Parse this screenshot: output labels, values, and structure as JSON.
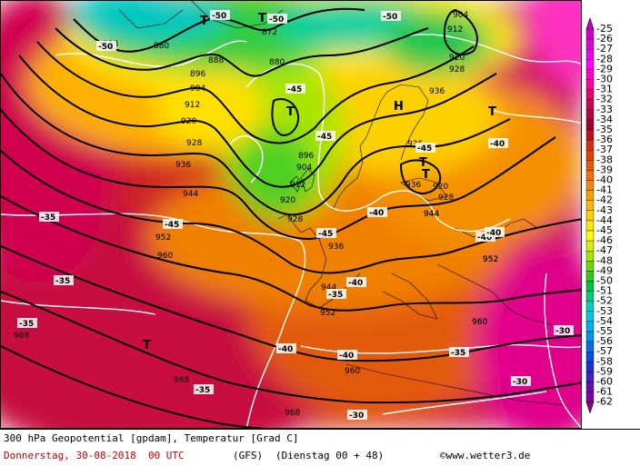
{
  "legend": {
    "values": [
      "-25",
      "-26",
      "-27",
      "-28",
      "-29",
      "-30",
      "-31",
      "-32",
      "-33",
      "-34",
      "-35",
      "-36",
      "-37",
      "-38",
      "-39",
      "-40",
      "-41",
      "-42",
      "-43",
      "-44",
      "-45",
      "-46",
      "-47",
      "-48",
      "-49",
      "-50",
      "-51",
      "-52",
      "-53",
      "-54",
      "-55",
      "-56",
      "-57",
      "-58",
      "-59",
      "-60",
      "-61",
      "-62"
    ],
    "colors": [
      "#cc00cc",
      "#dd00dd",
      "#ee00ee",
      "#ff00ff",
      "#ff00cc",
      "#ff0099",
      "#e6006e",
      "#cc0055",
      "#b80040",
      "#a00030",
      "#c01020",
      "#d03010",
      "#e04000",
      "#e85800",
      "#f07000",
      "#f58800",
      "#faa000",
      "#ffb800",
      "#ffd000",
      "#ffe800",
      "#ffff00",
      "#d8f000",
      "#a8e400",
      "#70d800",
      "#30cc10",
      "#00c040",
      "#00c880",
      "#00d0b8",
      "#00c8e0",
      "#00b0f0",
      "#0090f0",
      "#0070e8",
      "#0050e0",
      "#2030d0",
      "#4020c0",
      "#6010b0",
      "#7808a0",
      "#900090"
    ]
  },
  "caption": {
    "line1": "300 hPa Geopotential [gpdam], Temperatur [Grad C]",
    "date": "Donnerstag, 30-08-2018  00 UTC",
    "model": "(GFS)",
    "run": "(Dienstag 00 + 48)",
    "credit": "©www.wetter3.de"
  },
  "map": {
    "geopotential_labels": [
      "872",
      "880",
      "888",
      "896",
      "904",
      "912",
      "920",
      "928",
      "936",
      "944",
      "952",
      "960",
      "968",
      "880",
      "888",
      "896",
      "904",
      "912",
      "920",
      "928",
      "936",
      "944",
      "952",
      "960",
      "968",
      "920",
      "928",
      "936",
      "936",
      "944",
      "952",
      "960",
      "904",
      "912",
      "920",
      "928",
      "936",
      "944",
      "952",
      "960",
      "968"
    ],
    "temperature_labels": [
      "-50",
      "-50",
      "-50",
      "-50",
      "-45",
      "-45",
      "-45",
      "-45",
      "-45",
      "-40",
      "-40",
      "-40",
      "-40",
      "-40",
      "-40",
      "-40",
      "-35",
      "-35",
      "-35",
      "-35",
      "-35",
      "-35",
      "-30",
      "-30",
      "-30"
    ],
    "low_symbol": "T",
    "high_symbol": "H"
  }
}
